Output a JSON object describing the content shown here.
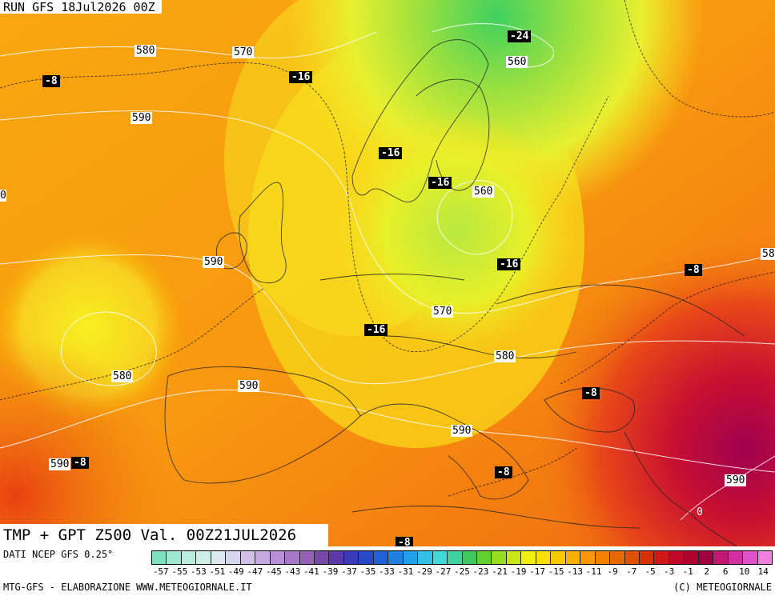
{
  "header": {
    "run_label": "RUN GFS 18Jul2026 00Z"
  },
  "footer": {
    "valid_label": "TMP + GPT Z500 Val. 00Z21JUL2026",
    "source": "DATI NCEP GFS 0.25°",
    "credit": "MTG-GFS - ELABORAZIONE WWW.METEOGIORNALE.IT",
    "copyright": "(C) METEOGIORNALE"
  },
  "temperature_labels": [
    "-8",
    "-16",
    "-24",
    "-16",
    "-16",
    "-16",
    "-16",
    "-8",
    "-8",
    "-8",
    "-8",
    "-8"
  ],
  "geopotential_labels": [
    "580",
    "570",
    "590",
    "560",
    "560",
    "590",
    "570",
    "580",
    "580",
    "590",
    "590",
    "590",
    "0",
    "0",
    "58"
  ],
  "legend": {
    "ticks": [
      "-57",
      "-55",
      "-53",
      "-51",
      "-49",
      "-47",
      "-45",
      "-43",
      "-41",
      "-39",
      "-37",
      "-35",
      "-33",
      "-31",
      "-29",
      "-27",
      "-25",
      "-23",
      "-21",
      "-19",
      "-17",
      "-15",
      "-13",
      "-11",
      "-9",
      "-7",
      "-5",
      "-3",
      "-1",
      "2",
      "6",
      "10",
      "14"
    ],
    "colors": [
      "#7fe0c0",
      "#a0e8d0",
      "#b8ecdc",
      "#cfeee8",
      "#dce8f0",
      "#d6d6ee",
      "#d0c0e8",
      "#c4a8e0",
      "#b890d8",
      "#a878c8",
      "#9460b8",
      "#7848a8",
      "#5a3aa8",
      "#3a3ab8",
      "#2848c8",
      "#2060d8",
      "#2080e0",
      "#20a0e8",
      "#30c0e8",
      "#40d8d8",
      "#40d0a0",
      "#40c860",
      "#60d030",
      "#98dc20",
      "#c8e818",
      "#f0f010",
      "#f8e000",
      "#f8c800",
      "#f8b000",
      "#f89800",
      "#f08000",
      "#e86800",
      "#e05000",
      "#d83000",
      "#d01818",
      "#c00828",
      "#b00030",
      "#a00040",
      "#c01870",
      "#d030a0",
      "#e050c8",
      "#f080e0"
    ]
  }
}
